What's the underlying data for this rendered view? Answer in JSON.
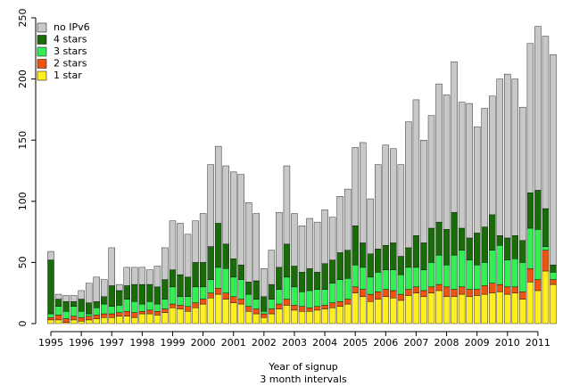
{
  "chart_data": {
    "type": "stacked_bar",
    "x_label": "Year of signup",
    "x_sublabel": "3 month intervals",
    "categories": [
      "1995",
      null,
      null,
      null,
      "1996",
      null,
      null,
      null,
      "1997",
      null,
      null,
      null,
      "1998",
      null,
      null,
      null,
      "1999",
      null,
      null,
      null,
      "2000",
      null,
      null,
      null,
      "2001",
      null,
      null,
      null,
      "2002",
      null,
      null,
      null,
      "2003",
      null,
      null,
      null,
      "2004",
      null,
      null,
      null,
      "2005",
      null,
      null,
      null,
      "2006",
      null,
      null,
      null,
      "2007",
      null,
      null,
      null,
      "2008",
      null,
      null,
      null,
      "2009",
      null,
      null,
      null,
      "2010",
      null,
      null,
      null,
      "2011",
      null,
      null
    ],
    "series": [
      {
        "name": "1 star",
        "color": "#ffee22",
        "values": [
          3,
          3,
          1,
          3,
          2,
          3,
          4,
          5,
          5,
          6,
          6,
          5,
          8,
          8,
          7,
          9,
          13,
          12,
          10,
          13,
          16,
          21,
          24,
          20,
          17,
          16,
          10,
          8,
          5,
          8,
          12,
          15,
          11,
          10,
          10,
          11,
          12,
          13,
          14,
          16,
          25,
          22,
          18,
          20,
          22,
          21,
          19,
          23,
          25,
          22,
          25,
          27,
          22,
          22,
          24,
          22,
          23,
          24,
          25,
          26,
          24,
          25,
          20,
          34,
          27,
          43,
          32
        ]
      },
      {
        "name": "2 stars",
        "color": "#ee5511",
        "values": [
          2,
          4,
          3,
          3,
          3,
          3,
          3,
          3,
          3,
          3,
          4,
          4,
          2,
          3,
          3,
          3,
          3,
          3,
          4,
          4,
          4,
          4,
          5,
          5,
          5,
          4,
          4,
          4,
          3,
          4,
          4,
          5,
          4,
          4,
          3,
          3,
          3,
          4,
          4,
          4,
          5,
          6,
          6,
          6,
          6,
          6,
          5,
          5,
          5,
          5,
          5,
          5,
          8,
          6,
          6,
          6,
          5,
          7,
          8,
          6,
          6,
          5,
          6,
          11,
          9,
          17,
          4
        ]
      },
      {
        "name": "3 stars",
        "color": "#33ee55",
        "values": [
          3,
          7,
          6,
          8,
          5,
          2,
          6,
          8,
          6,
          6,
          10,
          9,
          6,
          7,
          6,
          8,
          14,
          7,
          8,
          13,
          10,
          11,
          17,
          20,
          16,
          16,
          10,
          8,
          2,
          8,
          12,
          18,
          15,
          12,
          14,
          14,
          13,
          16,
          18,
          17,
          18,
          18,
          14,
          16,
          16,
          17,
          16,
          18,
          16,
          17,
          20,
          24,
          18,
          28,
          30,
          24,
          20,
          19,
          27,
          32,
          22,
          23,
          24,
          33,
          41,
          3,
          6
        ]
      },
      {
        "name": "4 stars",
        "color": "#1a6b0a",
        "values": [
          44,
          6,
          8,
          4,
          10,
          9,
          5,
          6,
          17,
          12,
          11,
          14,
          16,
          14,
          14,
          16,
          14,
          18,
          16,
          20,
          20,
          27,
          36,
          20,
          15,
          12,
          10,
          15,
          12,
          12,
          18,
          27,
          17,
          16,
          18,
          14,
          21,
          19,
          22,
          23,
          32,
          20,
          19,
          19,
          20,
          22,
          15,
          16,
          26,
          22,
          28,
          27,
          29,
          35,
          18,
          18,
          26,
          29,
          29,
          8,
          18,
          19,
          18,
          29,
          32,
          31,
          6
        ]
      },
      {
        "name": "no IPv6",
        "color": "#c8c8c8",
        "values": [
          7,
          4,
          5,
          5,
          7,
          16,
          20,
          14,
          31,
          5,
          15,
          14,
          14,
          12,
          17,
          26,
          40,
          42,
          35,
          34,
          40,
          67,
          63,
          64,
          71,
          74,
          65,
          55,
          23,
          28,
          45,
          64,
          43,
          38,
          41,
          41,
          44,
          35,
          46,
          50,
          64,
          82,
          45,
          69,
          82,
          77,
          75,
          103,
          111,
          84,
          92,
          113,
          110,
          123,
          103,
          110,
          87,
          97,
          97,
          128,
          134,
          128,
          109,
          122,
          134,
          141,
          172
        ]
      }
    ],
    "ylim": [
      0,
      250
    ],
    "yticks": [
      0,
      50,
      100,
      150,
      200,
      250
    ],
    "legend": "top-left"
  }
}
